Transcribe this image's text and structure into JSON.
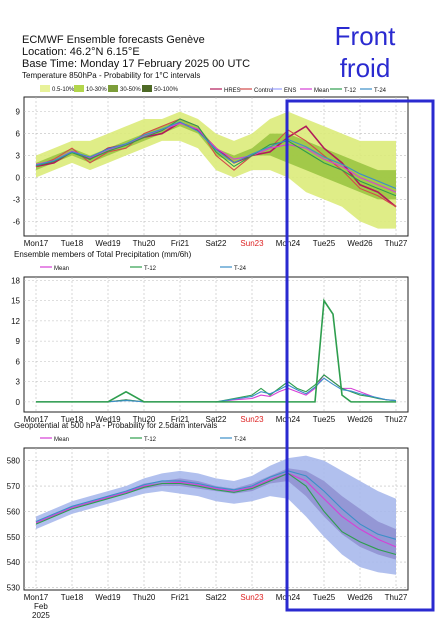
{
  "header": {
    "title": "ECMWF Ensemble forecasts Genève",
    "location": "Location:  46.2°N 6.15°E",
    "base_time": "Base Time: Monday 17 February 2025 00 UTC"
  },
  "annotation": {
    "line1": "Front",
    "line2": "froid",
    "color": "#2a2ad0"
  },
  "x_axis": {
    "labels": [
      "Mon17",
      "Tue18",
      "Wed19",
      "Thu20",
      "Fri21",
      "Sat22",
      "Sun23",
      "Mon24",
      "Tue25",
      "Wed26",
      "Thu27"
    ],
    "highlight_index": 6,
    "highlight_color": "#dd2222",
    "bottom_extra": [
      "Feb",
      "2025"
    ]
  },
  "chart_data": [
    {
      "type": "area",
      "title": "Temperature 850hPa - Probability for 1°C intervals",
      "ylim": [
        -8,
        11
      ],
      "yticks": [
        -6,
        -3,
        0,
        3,
        6,
        9
      ],
      "probability_legend": [
        {
          "label": "0.5-10%",
          "color": "#e8f29a"
        },
        {
          "label": "10-30%",
          "color": "#b3d64c"
        },
        {
          "label": "30-50%",
          "color": "#7d9e3a"
        },
        {
          "label": "50-100%",
          "color": "#4e6a26"
        }
      ],
      "line_legend": [
        {
          "label": "HRES",
          "color": "#b21b5a"
        },
        {
          "label": "Control",
          "color": "#d24a4a"
        },
        {
          "label": "ENS",
          "color": "#9aa0ff"
        },
        {
          "label": "Mean",
          "color": "#d63fd6"
        },
        {
          "label": "T-12",
          "color": "#2e9e4e"
        },
        {
          "label": "T-24",
          "color": "#3c8fc8"
        }
      ],
      "x": [
        0,
        0.5,
        1,
        1.5,
        2,
        2.5,
        3,
        3.5,
        4,
        4.5,
        5,
        5.5,
        6,
        6.5,
        7,
        7.5,
        8,
        8.5,
        9,
        9.5,
        10
      ],
      "band_outer_low": [
        0,
        1,
        2,
        1,
        2,
        3,
        4,
        5,
        5,
        4,
        1,
        0,
        1,
        1,
        0,
        -2,
        -3,
        -4,
        -6,
        -7,
        -7
      ],
      "band_outer_high": [
        3,
        4,
        5,
        5,
        6,
        7,
        8,
        8,
        9,
        8,
        6,
        5,
        6,
        8,
        9,
        8,
        7,
        6,
        5,
        5,
        5
      ],
      "band_inner_low": [
        1,
        2,
        3,
        2,
        3,
        4,
        5,
        6,
        7,
        6,
        3,
        2,
        3,
        3,
        2,
        1,
        0,
        -1,
        -2,
        -3,
        -3
      ],
      "band_inner_high": [
        2,
        3,
        4,
        3,
        4,
        5,
        6,
        7,
        8,
        7,
        4,
        3,
        4,
        6,
        6,
        5,
        4,
        3,
        2,
        1,
        1
      ],
      "series": [
        {
          "name": "HRES",
          "values": [
            1.5,
            2,
            3.5,
            2.5,
            4,
            4.5,
            5.5,
            6,
            7.5,
            6.5,
            4,
            2,
            3,
            3.5,
            5.5,
            7,
            4,
            2,
            -1,
            -2,
            -4
          ]
        },
        {
          "name": "Control",
          "values": [
            1.5,
            2.5,
            4,
            2,
            3.5,
            4,
            6,
            7,
            8,
            7,
            3,
            1,
            3,
            4,
            6.5,
            5,
            3,
            1,
            -1.5,
            -2.5,
            -4
          ]
        },
        {
          "name": "Mean",
          "values": [
            1.8,
            2.3,
            3.6,
            2.7,
            3.8,
            4.5,
            5.6,
            6.5,
            7.4,
            6.6,
            4,
            2.5,
            3,
            4,
            4.5,
            4,
            2.5,
            1.5,
            0,
            -1,
            -2
          ]
        },
        {
          "name": "T-12",
          "values": [
            1.6,
            2.2,
            3.4,
            2.5,
            3.6,
            4.4,
            5.5,
            6.4,
            8,
            7,
            3.5,
            1.5,
            3,
            4.5,
            5,
            3.5,
            2,
            1,
            -0.5,
            -1.5,
            -2.5
          ]
        },
        {
          "name": "T-24",
          "values": [
            1.7,
            2.3,
            3.5,
            2.8,
            3.9,
            4.6,
            5.8,
            6.6,
            7.6,
            6.3,
            3.8,
            2,
            3.2,
            4.2,
            5.2,
            4.2,
            2.8,
            1.8,
            0.5,
            -0.5,
            -1.5
          ]
        }
      ],
      "grid": true
    },
    {
      "type": "line",
      "title": "Ensemble members of Total Precipitation (mm/6h)",
      "ylim": [
        -1.5,
        18.5
      ],
      "yticks": [
        0,
        3,
        6,
        9,
        12,
        15,
        18
      ],
      "line_legend": [
        {
          "label": "Mean",
          "color": "#d63fd6"
        },
        {
          "label": "T-12",
          "color": "#2e9e4e"
        },
        {
          "label": "T-24",
          "color": "#3c8fc8"
        }
      ],
      "x": [
        0,
        1,
        2,
        2.5,
        3,
        4,
        5,
        5.5,
        6,
        6.25,
        6.5,
        6.75,
        7,
        7.25,
        7.5,
        7.75,
        8,
        8.25,
        8.5,
        8.75,
        9,
        9.25,
        9.5,
        9.75,
        10
      ],
      "series": [
        {
          "name": "Mean",
          "values": [
            0,
            0,
            0,
            0.3,
            0,
            0,
            0,
            0.3,
            0.5,
            1,
            0.8,
            1.5,
            2,
            1.5,
            1,
            2,
            4,
            3,
            2,
            2,
            1.5,
            1,
            0.5,
            0.3,
            0.2
          ]
        },
        {
          "name": "T-12",
          "values": [
            0,
            0,
            0,
            0.3,
            0,
            0,
            0,
            0.5,
            1,
            2,
            1,
            2,
            3,
            2,
            1.5,
            2.5,
            4,
            3,
            2,
            1.5,
            1,
            0.8,
            0.5,
            0.3,
            0.2
          ]
        },
        {
          "name": "T-24",
          "values": [
            0,
            0,
            0,
            0.2,
            0,
            0,
            0,
            0.4,
            0.8,
            1.5,
            1.2,
            1.8,
            2.5,
            1.8,
            1.2,
            2.2,
            3.5,
            2.6,
            1.8,
            1.6,
            1.2,
            0.9,
            0.6,
            0.3,
            0.2
          ]
        },
        {
          "name": "HRES",
          "values": [
            0,
            0,
            0,
            1.5,
            0,
            0,
            0,
            0,
            0,
            0,
            0,
            0,
            0,
            0,
            0,
            0,
            15,
            13,
            1,
            0,
            0,
            0,
            0,
            0,
            0
          ]
        }
      ],
      "grid": true
    },
    {
      "type": "area",
      "title": "Geopotential at 500 hPa - Probability for 2.5dam intervals",
      "ylim": [
        529,
        585
      ],
      "yticks": [
        530,
        540,
        550,
        560,
        570,
        580
      ],
      "line_legend": [
        {
          "label": "Mean",
          "color": "#d63fd6"
        },
        {
          "label": "T-12",
          "color": "#2e9e4e"
        },
        {
          "label": "T-24",
          "color": "#3c8fc8"
        }
      ],
      "x": [
        0,
        0.5,
        1,
        1.5,
        2,
        2.5,
        3,
        3.5,
        4,
        4.5,
        5,
        5.5,
        6,
        6.5,
        7,
        7.5,
        8,
        8.5,
        9,
        9.5,
        10
      ],
      "band_outer_low": [
        553,
        556,
        559,
        561,
        563,
        565,
        567,
        568,
        567,
        566,
        564,
        563,
        564,
        566,
        565,
        558,
        550,
        543,
        538,
        536,
        535
      ],
      "band_outer_high": [
        558,
        561,
        564,
        566,
        568,
        570,
        573,
        575,
        576,
        575,
        573,
        572,
        574,
        578,
        581,
        582,
        580,
        576,
        572,
        568,
        565
      ],
      "band_inner_low": [
        555,
        558,
        561,
        563,
        565,
        567,
        569,
        570,
        570,
        569,
        568,
        567,
        568,
        571,
        572,
        566,
        558,
        551,
        546,
        543,
        541
      ],
      "band_inner_high": [
        556,
        559,
        562,
        564,
        566,
        568,
        571,
        572,
        573,
        572,
        570,
        569,
        571,
        574,
        577,
        576,
        572,
        566,
        561,
        556,
        553
      ],
      "series": [
        {
          "name": "Mean",
          "values": [
            555.5,
            558.5,
            561.5,
            563.5,
            565.5,
            567.5,
            570,
            571,
            571.5,
            570.5,
            569,
            568,
            569.5,
            572.5,
            575,
            572,
            565,
            558,
            553,
            549,
            546
          ]
        },
        {
          "name": "T-12",
          "values": [
            555,
            558,
            561,
            563,
            565,
            567,
            569.5,
            571,
            571,
            570,
            568.5,
            567.5,
            569,
            572,
            575,
            570,
            560,
            552,
            548,
            545,
            543
          ]
        },
        {
          "name": "T-24",
          "values": [
            556,
            559,
            562,
            564,
            566,
            568,
            570.5,
            572,
            572,
            571,
            569.5,
            568.5,
            570,
            573.5,
            576,
            574,
            568,
            561,
            555,
            551,
            549
          ]
        }
      ],
      "grid": true
    }
  ]
}
